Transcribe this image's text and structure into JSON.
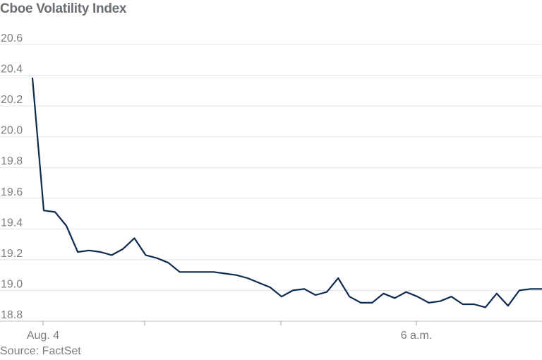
{
  "title": "Cboe Volatility Index",
  "source": "Source: FactSet",
  "chart_data": {
    "type": "line",
    "title": "Cboe Volatility Index",
    "xlabel": "",
    "ylabel": "",
    "ylim": [
      18.8,
      20.6
    ],
    "yticks": [
      20.6,
      20.4,
      20.2,
      20.0,
      19.8,
      19.6,
      19.4,
      19.2,
      19.0,
      18.8
    ],
    "ytick_labels": [
      "20.6",
      "20.4",
      "20.2",
      "20.0",
      "19.8",
      "19.6",
      "19.4",
      "19.2",
      "19.0",
      "18.8"
    ],
    "xtick_labels": [
      "Aug. 4",
      "",
      "",
      "6 a.m."
    ],
    "grid": true,
    "color": "#0d2a4f",
    "series": [
      {
        "values": [
          20.38,
          19.52,
          19.51,
          19.42,
          19.25,
          19.26,
          19.25,
          19.23,
          19.27,
          19.34,
          19.23,
          19.21,
          19.18,
          19.12,
          19.12,
          19.12,
          19.12,
          19.11,
          19.1,
          19.08,
          19.05,
          19.02,
          18.96,
          19.0,
          19.01,
          18.97,
          18.99,
          19.08,
          18.96,
          18.92,
          18.92,
          18.98,
          18.95,
          18.99,
          18.96,
          18.92,
          18.93,
          18.96,
          18.91,
          18.91,
          18.89,
          18.98,
          18.9,
          19.0,
          19.01,
          19.01
        ]
      }
    ]
  }
}
